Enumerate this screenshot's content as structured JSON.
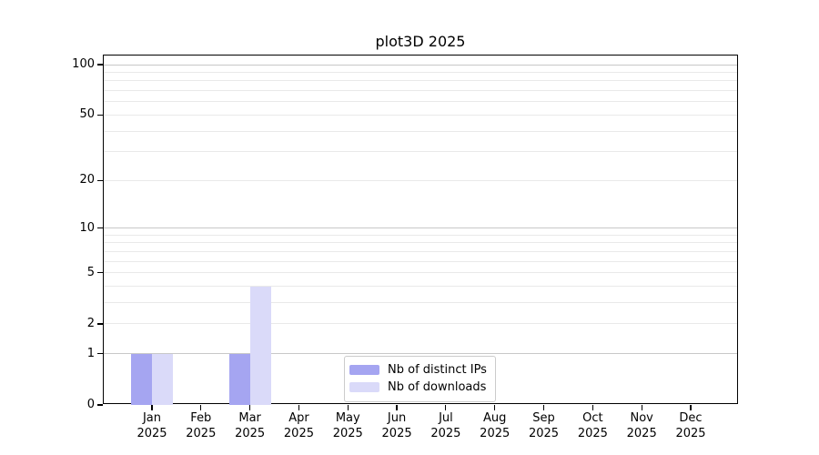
{
  "chart_data": {
    "type": "bar",
    "title": "plot3D 2025",
    "categories": [
      "Jan",
      "Feb",
      "Mar",
      "Apr",
      "May",
      "Jun",
      "Jul",
      "Aug",
      "Sep",
      "Oct",
      "Nov",
      "Dec"
    ],
    "x_tick_year": "2025",
    "series": [
      {
        "name": "Nb of distinct IPs",
        "color": "#a5a5f1",
        "values": [
          1,
          0,
          1,
          0,
          0,
          0,
          0,
          0,
          0,
          0,
          0,
          0
        ]
      },
      {
        "name": "Nb of downloads",
        "color": "#dadaf9",
        "values": [
          1,
          0,
          4,
          0,
          0,
          0,
          0,
          0,
          0,
          0,
          0,
          0
        ]
      }
    ],
    "y_axis": {
      "scale": "log1p",
      "range": [
        0,
        100
      ],
      "ticks": [
        0,
        1,
        2,
        5,
        10,
        20,
        50,
        100
      ],
      "major_gridlines": [
        1,
        10,
        100
      ],
      "minor_gridlines": [
        2,
        3,
        4,
        5,
        6,
        7,
        8,
        9,
        20,
        30,
        40,
        50,
        60,
        70,
        80,
        90
      ]
    },
    "grid": "horizontal",
    "legend_position": "bottom-center",
    "colors": {
      "major_grid": "#c8c8c8",
      "minor_grid": "#e9e9e9",
      "axis": "#000000",
      "text": "#000000",
      "background": "#ffffff",
      "legend_border": "#cccccc"
    }
  }
}
